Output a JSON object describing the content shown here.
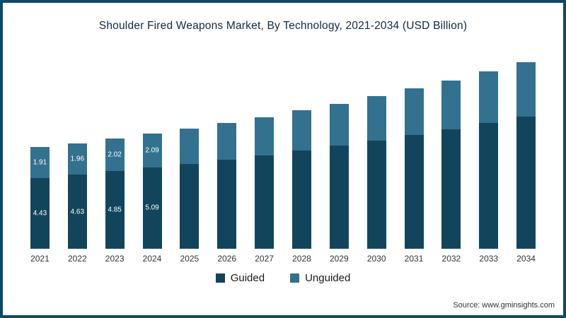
{
  "title": "Shoulder Fired Weapons Market, By Technology, 2021-2034 (USD Billion)",
  "source": "Source: www.gminsights.com",
  "legend": [
    {
      "label": "Guided",
      "color": "#12455c"
    },
    {
      "label": "Unguided",
      "color": "#34718f"
    }
  ],
  "chart_data": {
    "type": "bar",
    "stacked": true,
    "title": "Shoulder Fired Weapons Market, By Technology, 2021-2034 (USD Billion)",
    "categories": [
      "2021",
      "2022",
      "2023",
      "2024",
      "2025",
      "2026",
      "2027",
      "2028",
      "2029",
      "2030",
      "2031",
      "2032",
      "2033",
      "2034"
    ],
    "series": [
      {
        "name": "Guided",
        "color": "#12455c",
        "values": [
          4.43,
          4.63,
          4.85,
          5.09,
          5.3,
          5.56,
          5.83,
          6.12,
          6.43,
          6.76,
          7.1,
          7.47,
          7.86,
          8.27
        ]
      },
      {
        "name": "Unguided",
        "color": "#34718f",
        "values": [
          1.91,
          1.96,
          2.02,
          2.09,
          2.18,
          2.28,
          2.39,
          2.51,
          2.63,
          2.76,
          2.9,
          3.05,
          3.21,
          3.38
        ]
      }
    ],
    "value_labels_first_n": 4,
    "xlabel": "",
    "ylabel": "",
    "ylim": [
      0,
      12
    ],
    "grid": false,
    "legend_position": "bottom"
  }
}
